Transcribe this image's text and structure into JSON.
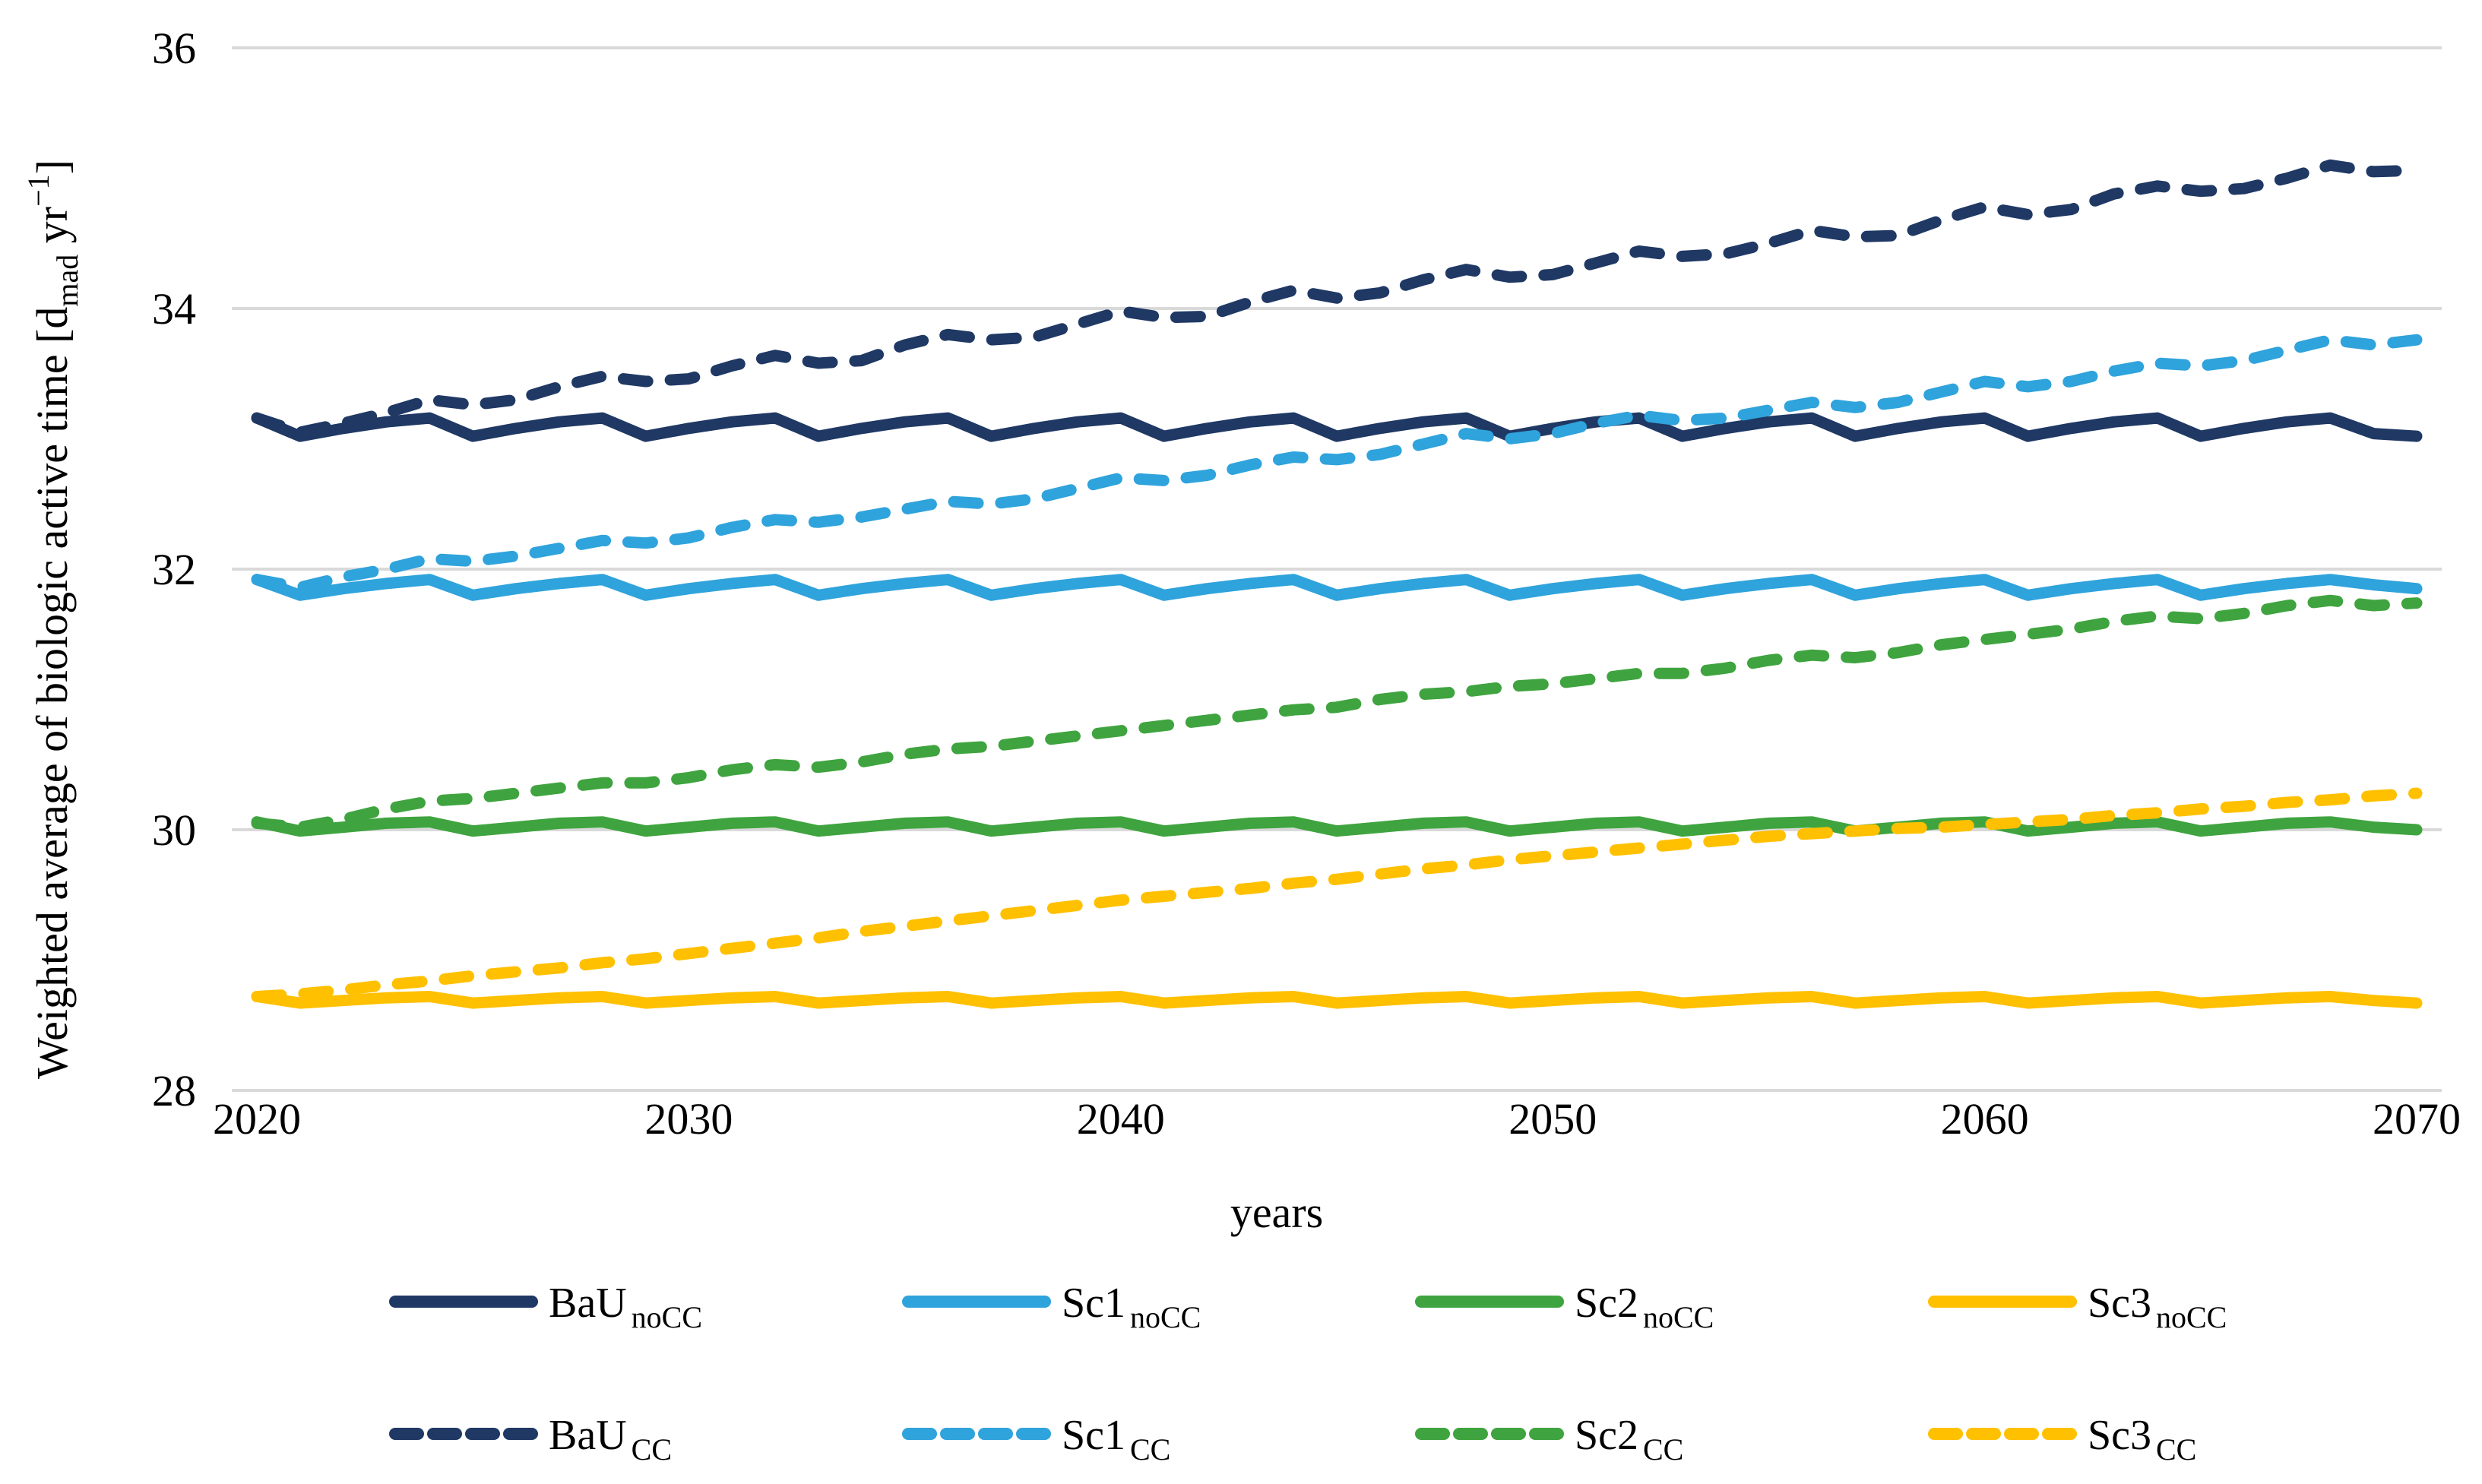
{
  "figure": {
    "xlabel": "years",
    "ylabel": {
      "pre": "Weighted average of biologic active time [d",
      "sub": "mad",
      "mid": " yr",
      "sup": "−1",
      "post": "]"
    },
    "background_color": "#ffffff",
    "gridline_color": "#d9d9d9",
    "text_color": "#000000"
  },
  "chart_data": {
    "type": "line",
    "title": "",
    "xlabel": "years",
    "ylabel": "Weighted average of biologic active time [d_mad yr^-1]",
    "x_range": [
      2020,
      2070
    ],
    "x_step": 1,
    "xticks": [
      "2020",
      "2030",
      "2040",
      "2050",
      "2060",
      "2070"
    ],
    "yticks": [
      "36",
      "34",
      "32",
      "30",
      "28"
    ],
    "ytick_values": [
      36,
      34,
      32,
      30,
      28
    ],
    "ylim": [
      28,
      36
    ],
    "grid": true,
    "legend_position": "bottom",
    "colors": {
      "navy": "#1F3864",
      "light_blue": "#2FA3DC",
      "green": "#3FA43F",
      "yellow": "#FFC000"
    },
    "series": [
      {
        "name_main": "BaU",
        "name_sub": "noCC",
        "color": "#1F3864",
        "style": "solid",
        "values": [
          33.16,
          33.02,
          33.08,
          33.13,
          33.16,
          33.02,
          33.08,
          33.13,
          33.16,
          33.02,
          33.08,
          33.13,
          33.16,
          33.02,
          33.08,
          33.13,
          33.16,
          33.02,
          33.08,
          33.13,
          33.16,
          33.02,
          33.08,
          33.13,
          33.16,
          33.02,
          33.08,
          33.13,
          33.16,
          33.02,
          33.08,
          33.13,
          33.16,
          33.02,
          33.08,
          33.13,
          33.16,
          33.02,
          33.08,
          33.13,
          33.16,
          33.02,
          33.08,
          33.13,
          33.16,
          33.02,
          33.08,
          33.13,
          33.16,
          33.04,
          33.02
        ]
      },
      {
        "name_main": "Sc1",
        "name_sub": "noCC",
        "color": "#2FA3DC",
        "style": "solid",
        "values": [
          31.92,
          31.8,
          31.85,
          31.89,
          31.92,
          31.8,
          31.85,
          31.89,
          31.92,
          31.8,
          31.85,
          31.89,
          31.92,
          31.8,
          31.85,
          31.89,
          31.92,
          31.8,
          31.85,
          31.89,
          31.92,
          31.8,
          31.85,
          31.89,
          31.92,
          31.8,
          31.85,
          31.89,
          31.92,
          31.8,
          31.85,
          31.89,
          31.92,
          31.8,
          31.85,
          31.89,
          31.92,
          31.8,
          31.85,
          31.89,
          31.92,
          31.8,
          31.85,
          31.89,
          31.92,
          31.8,
          31.85,
          31.89,
          31.92,
          31.88,
          31.85
        ]
      },
      {
        "name_main": "Sc2",
        "name_sub": "noCC",
        "color": "#3FA43F",
        "style": "solid",
        "values": [
          30.06,
          29.99,
          30.02,
          30.05,
          30.06,
          29.99,
          30.02,
          30.05,
          30.06,
          29.99,
          30.02,
          30.05,
          30.06,
          29.99,
          30.02,
          30.05,
          30.06,
          29.99,
          30.02,
          30.05,
          30.06,
          29.99,
          30.02,
          30.05,
          30.06,
          29.99,
          30.02,
          30.05,
          30.06,
          29.99,
          30.02,
          30.05,
          30.06,
          29.99,
          30.02,
          30.05,
          30.06,
          29.99,
          30.02,
          30.05,
          30.06,
          29.99,
          30.02,
          30.05,
          30.06,
          29.99,
          30.02,
          30.05,
          30.06,
          30.02,
          30.0
        ]
      },
      {
        "name_main": "Sc3",
        "name_sub": "noCC",
        "color": "#FFC000",
        "style": "solid",
        "values": [
          28.72,
          28.67,
          28.69,
          28.71,
          28.72,
          28.67,
          28.69,
          28.71,
          28.72,
          28.67,
          28.69,
          28.71,
          28.72,
          28.67,
          28.69,
          28.71,
          28.72,
          28.67,
          28.69,
          28.71,
          28.72,
          28.67,
          28.69,
          28.71,
          28.72,
          28.67,
          28.69,
          28.71,
          28.72,
          28.67,
          28.69,
          28.71,
          28.72,
          28.67,
          28.69,
          28.71,
          28.72,
          28.67,
          28.69,
          28.71,
          28.72,
          28.67,
          28.69,
          28.71,
          28.72,
          28.67,
          28.69,
          28.71,
          28.72,
          28.69,
          28.67
        ]
      },
      {
        "name_main": "BaU",
        "name_sub": "CC",
        "color": "#1F3864",
        "style": "dashed",
        "values": [
          33.16,
          33.05,
          33.12,
          33.2,
          33.3,
          33.26,
          33.3,
          33.4,
          33.48,
          33.44,
          33.46,
          33.56,
          33.64,
          33.58,
          33.6,
          33.72,
          33.8,
          33.76,
          33.78,
          33.88,
          33.98,
          33.93,
          33.94,
          34.05,
          34.14,
          34.08,
          34.12,
          34.22,
          34.3,
          34.24,
          34.26,
          34.35,
          34.44,
          34.4,
          34.42,
          34.5,
          34.6,
          34.55,
          34.56,
          34.68,
          34.78,
          34.72,
          34.76,
          34.88,
          34.94,
          34.9,
          34.92,
          35.0,
          35.1,
          35.05,
          35.06
        ]
      },
      {
        "name_main": "Sc1",
        "name_sub": "CC",
        "color": "#2FA3DC",
        "style": "dashed",
        "values": [
          31.92,
          31.86,
          31.94,
          32.0,
          32.08,
          32.06,
          32.1,
          32.16,
          32.22,
          32.2,
          32.24,
          32.32,
          32.38,
          32.36,
          32.4,
          32.46,
          32.52,
          32.5,
          32.54,
          32.62,
          32.7,
          32.68,
          32.72,
          32.8,
          32.86,
          32.84,
          32.88,
          32.96,
          33.04,
          33.0,
          33.04,
          33.12,
          33.18,
          33.14,
          33.16,
          33.22,
          33.28,
          33.24,
          33.28,
          33.36,
          33.44,
          33.4,
          33.44,
          33.52,
          33.58,
          33.56,
          33.6,
          33.68,
          33.76,
          33.72,
          33.76
        ]
      },
      {
        "name_main": "Sc2",
        "name_sub": "CC",
        "color": "#3FA43F",
        "style": "dashed",
        "values": [
          30.05,
          30.02,
          30.08,
          30.16,
          30.22,
          30.24,
          30.28,
          30.32,
          30.36,
          30.36,
          30.4,
          30.46,
          30.5,
          30.48,
          30.52,
          30.58,
          30.62,
          30.64,
          30.68,
          30.72,
          30.76,
          30.8,
          30.84,
          30.88,
          30.92,
          30.94,
          31.0,
          31.04,
          31.06,
          31.1,
          31.12,
          31.16,
          31.2,
          31.2,
          31.24,
          31.3,
          31.34,
          31.32,
          31.36,
          31.42,
          31.46,
          31.5,
          31.54,
          31.6,
          31.64,
          31.62,
          31.66,
          31.72,
          31.76,
          31.72,
          31.74
        ]
      },
      {
        "name_main": "Sc3",
        "name_sub": "CC",
        "color": "#FFC000",
        "style": "dashed",
        "values": [
          28.72,
          28.74,
          28.77,
          28.81,
          28.84,
          28.88,
          28.91,
          28.94,
          28.98,
          29.01,
          29.05,
          29.09,
          29.13,
          29.17,
          29.22,
          29.26,
          29.3,
          29.34,
          29.38,
          29.42,
          29.46,
          29.49,
          29.52,
          29.55,
          29.59,
          29.62,
          29.66,
          29.7,
          29.73,
          29.77,
          29.8,
          29.83,
          29.86,
          29.89,
          29.92,
          29.95,
          29.97,
          29.99,
          30.01,
          30.02,
          30.04,
          30.06,
          30.08,
          30.11,
          30.13,
          30.16,
          30.18,
          30.21,
          30.23,
          30.26,
          30.28
        ]
      }
    ]
  }
}
